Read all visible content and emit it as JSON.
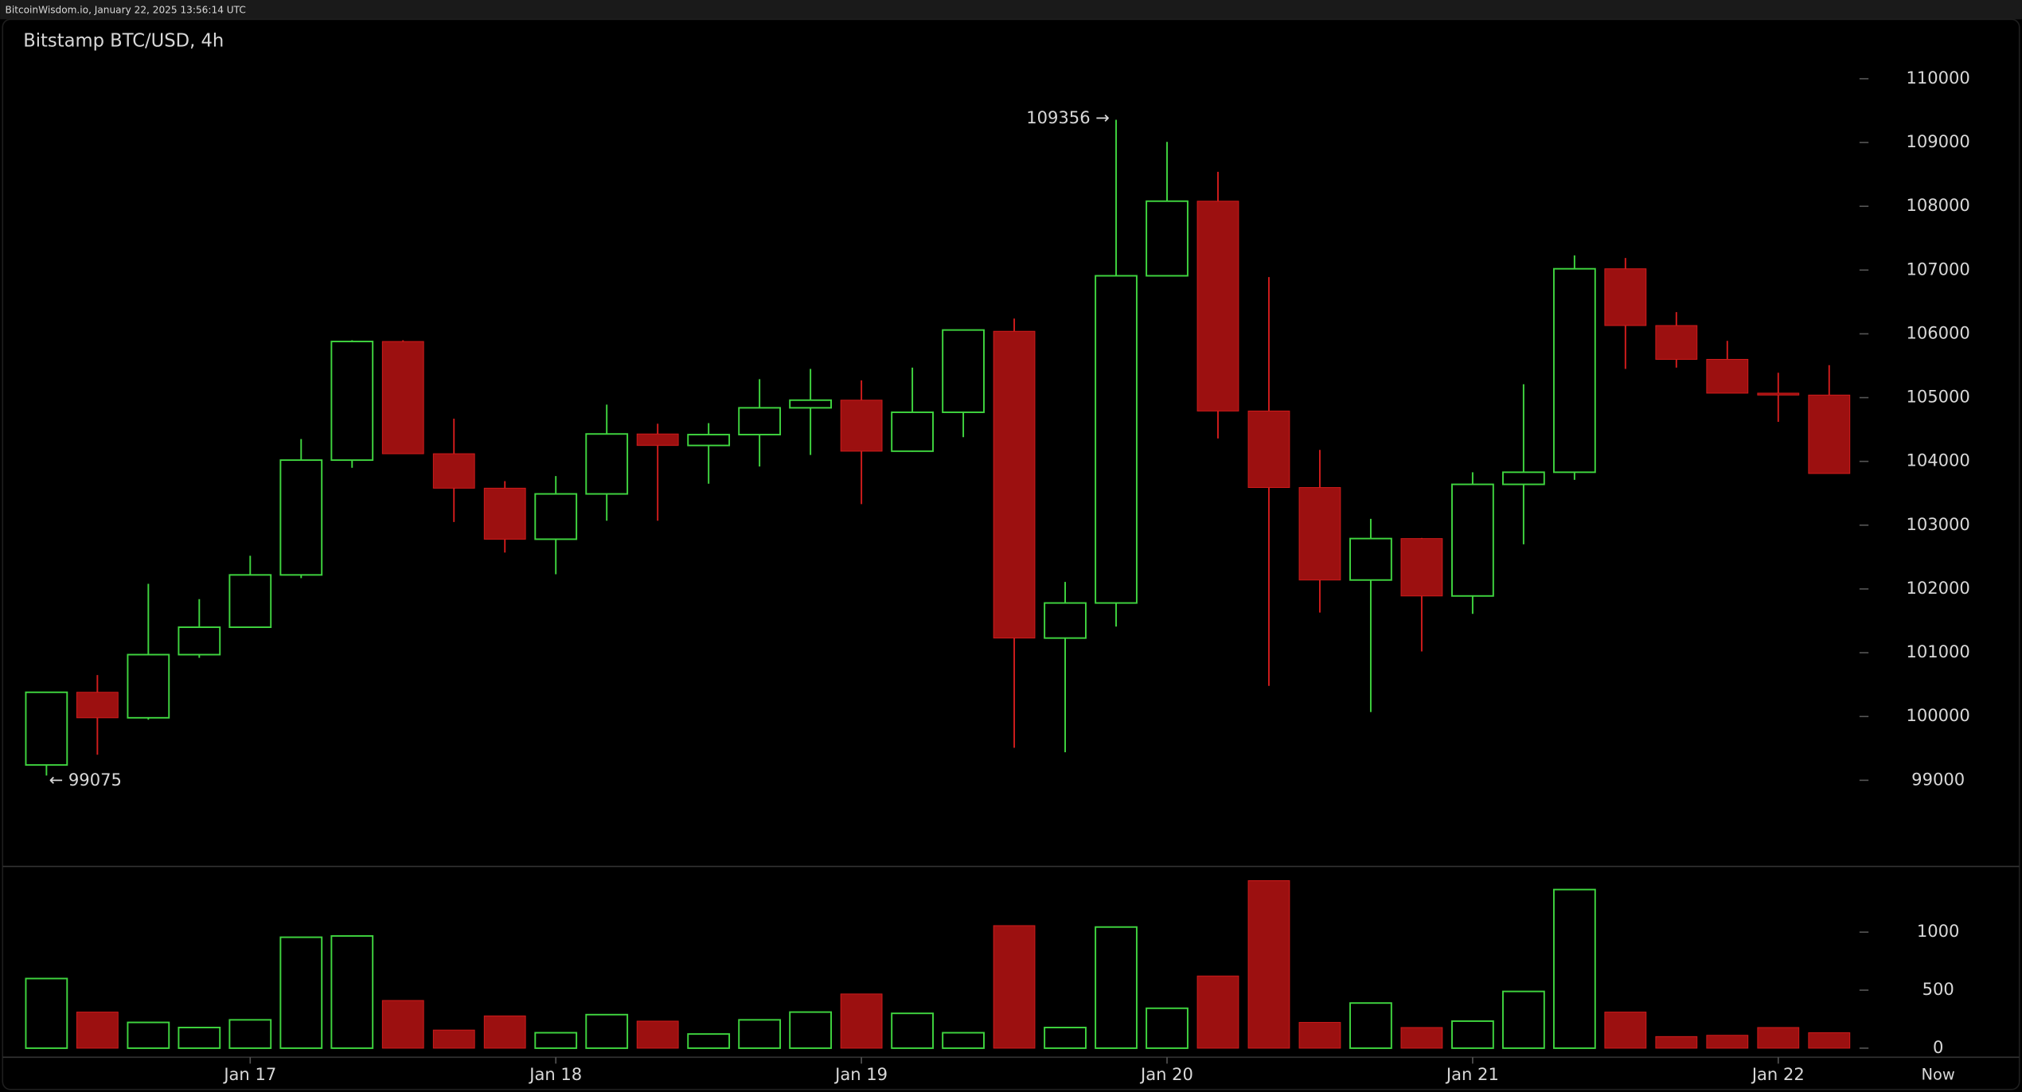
{
  "chart_data": {
    "type": "candlestick",
    "header": "BitcoinWisdom.io, January 22, 2025 13:56:14 UTC",
    "title": "Bitstamp BTC/USD, 4h",
    "categories": [
      null,
      null,
      null,
      null,
      "Jan 17",
      null,
      null,
      null,
      null,
      null,
      "Jan 18",
      null,
      null,
      null,
      null,
      null,
      "Jan 19",
      null,
      null,
      null,
      null,
      null,
      "Jan 20",
      null,
      null,
      null,
      null,
      null,
      "Jan 21",
      null,
      null,
      null,
      null,
      null,
      "Jan 22",
      null
    ],
    "x_end_label": "Now",
    "open": [
      99240,
      100380,
      99980,
      100970,
      101400,
      102220,
      104020,
      105880,
      104120,
      103580,
      102780,
      103490,
      104430,
      104250,
      104420,
      104840,
      104960,
      104160,
      104770,
      106040,
      101230,
      101780,
      106910,
      108080,
      104790,
      103590,
      102140,
      102790,
      101890,
      103640,
      103830,
      107020,
      106130,
      105600,
      105070,
      105040
    ],
    "high": [
      100380,
      100650,
      102080,
      101840,
      102520,
      104350,
      105900,
      105900,
      104670,
      103690,
      103770,
      104890,
      104590,
      104600,
      105290,
      105450,
      105270,
      105470,
      106060,
      106240,
      102110,
      109356,
      109010,
      108540,
      106890,
      104180,
      103100,
      102800,
      103830,
      105210,
      107230,
      107190,
      106340,
      105890,
      105390,
      105510
    ],
    "low": [
      99075,
      99400,
      99950,
      100920,
      101400,
      102170,
      103900,
      104120,
      103050,
      102570,
      102230,
      103070,
      103070,
      103650,
      103920,
      104100,
      103330,
      104150,
      104380,
      99510,
      99440,
      101410,
      106910,
      104360,
      100480,
      101630,
      100070,
      101020,
      101610,
      102700,
      103710,
      105450,
      105470,
      105070,
      104620,
      103810
    ],
    "close": [
      100380,
      99980,
      100970,
      101400,
      102220,
      104020,
      105880,
      104120,
      103580,
      102780,
      103490,
      104430,
      104250,
      104420,
      104840,
      104960,
      104160,
      104770,
      106060,
      101230,
      101780,
      106910,
      108080,
      104790,
      103590,
      102140,
      102790,
      101890,
      103640,
      103830,
      107020,
      106130,
      105600,
      105070,
      105040,
      103810
    ],
    "volume": [
      600,
      311,
      222,
      178,
      244,
      956,
      967,
      411,
      156,
      278,
      133,
      289,
      233,
      122,
      244,
      311,
      467,
      300,
      133,
      1056,
      178,
      1044,
      344,
      622,
      1444,
      222,
      389,
      178,
      233,
      489,
      1367,
      311,
      100,
      111,
      178,
      133
    ],
    "max_label": "109356 →",
    "min_label": "← 99075",
    "ylim": [
      97650,
      110830
    ],
    "yticks": [
      99000,
      100000,
      101000,
      102000,
      103000,
      104000,
      105000,
      106000,
      107000,
      108000,
      109000,
      110000
    ],
    "y2lim": [
      0,
      1500
    ],
    "y2ticks": [
      0,
      500,
      1000
    ],
    "up_color": "#3fd43f",
    "down_color": "#9c1010",
    "down_wick_color": "#d11c1c"
  }
}
